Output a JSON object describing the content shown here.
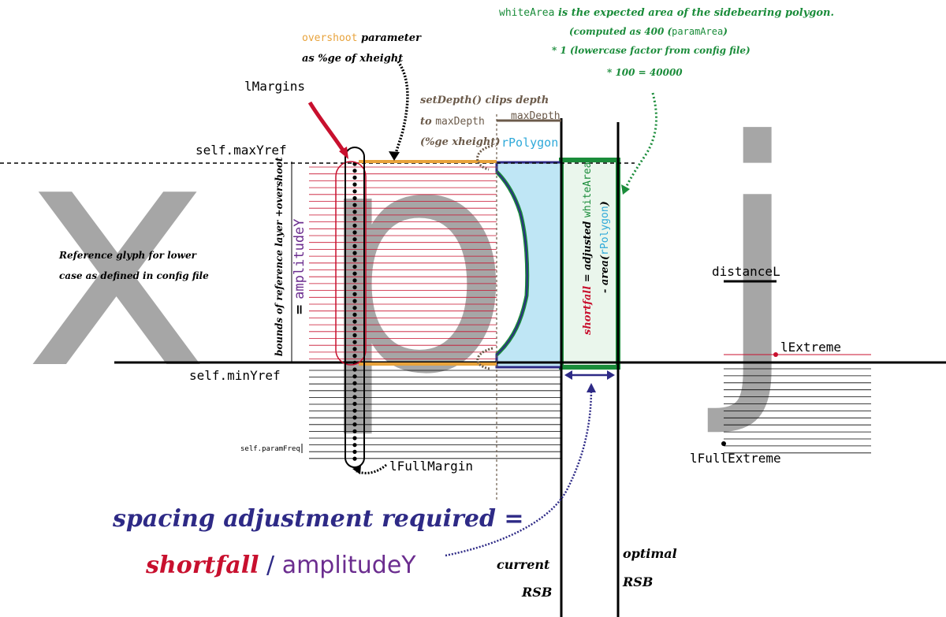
{
  "glyphs": {
    "x": "x",
    "p": "p",
    "j": "j"
  },
  "labels": {
    "max_yref": "self.maxYref",
    "min_yref": "self.minYref",
    "param_freq": "self.paramFreq",
    "l_margins": "lMargins",
    "l_full_margin": "lFullMargin",
    "max_depth": "maxDepth",
    "r_polygon": "rPolygon",
    "distance_l": "distanceL",
    "l_extreme": "lExtreme",
    "l_full_extreme": "lFullExtreme",
    "amplitude_y": "amplitudeY",
    "amplitude_prefix": "= ",
    "bounds_note": "bounds of reference layer +overshoot"
  },
  "overshoot_note": {
    "code": "overshoot",
    "line1_rest": " parameter",
    "line2": "as %ge of xheight"
  },
  "setdepth_note": {
    "line1": "setDepth() clips depth",
    "line2_prefix": "to ",
    "line2_code": "maxDepth",
    "line3": "(%ge xheight)"
  },
  "reference_note": {
    "line1": "Reference glyph for lower",
    "line2": "case as defined in config file"
  },
  "whitearea_note": {
    "line1_code": "whiteArea",
    "line1_rest": " is the expected area of the sidebearing polygon.",
    "line2_prefix": "(computed as  400 (",
    "line2_code": "paramArea",
    "line2_suffix": ")",
    "line3": "* 1 (lowercase factor from config file)",
    "line4": "* 100  = 40000"
  },
  "shortfall_note": {
    "word": "shortfall",
    "mid": " = adjusted ",
    "code": "whiteArea",
    "line2_prefix": "- area(",
    "line2_code": "rPolygon",
    "line2_suffix": ")"
  },
  "rsb": {
    "current_line1": "current",
    "current_line2": "RSB",
    "optimal_line1": "optimal",
    "optimal_line2": "RSB"
  },
  "formula": {
    "line1": "spacing adjustment required =",
    "shortfall": "shortfall",
    "slash": " / ",
    "amplitude": "amplitudeY"
  },
  "colors": {
    "glyph_gray": "#a6a6a6",
    "red": "#c8102e",
    "green": "#1a8c3a",
    "navy": "#2e2a86",
    "purple": "#6b2d8f",
    "orange": "#e8a33c",
    "brown": "#6b5a4a",
    "cyan": "#2ea9d9",
    "polygon_fill": "#bfe6f5",
    "white_area_fill": "#eaf6ec"
  }
}
